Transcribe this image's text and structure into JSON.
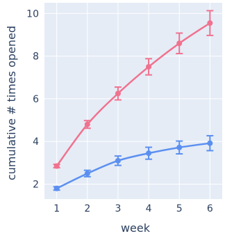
{
  "chart_data": {
    "type": "line",
    "title": "",
    "xlabel": "week",
    "ylabel": "cumulative # times opened",
    "x": [
      1,
      2,
      3,
      4,
      5,
      6
    ],
    "xlim": [
      0.6,
      6.4
    ],
    "ylim": [
      1.3,
      10.5
    ],
    "xticks": [
      1,
      2,
      3,
      4,
      5,
      6
    ],
    "yticks": [
      2,
      4,
      6,
      8,
      10
    ],
    "grid": true,
    "plot_background": "#e5ecf6",
    "series": [
      {
        "color": "#f0728f",
        "values": [
          2.85,
          4.8,
          6.25,
          7.5,
          8.6,
          9.55
        ],
        "error": [
          0.08,
          0.18,
          0.3,
          0.38,
          0.48,
          0.58
        ]
      },
      {
        "color": "#5b8ff0",
        "values": [
          1.8,
          2.5,
          3.1,
          3.45,
          3.72,
          3.92
        ],
        "error": [
          0.08,
          0.15,
          0.22,
          0.28,
          0.3,
          0.35
        ]
      }
    ]
  }
}
